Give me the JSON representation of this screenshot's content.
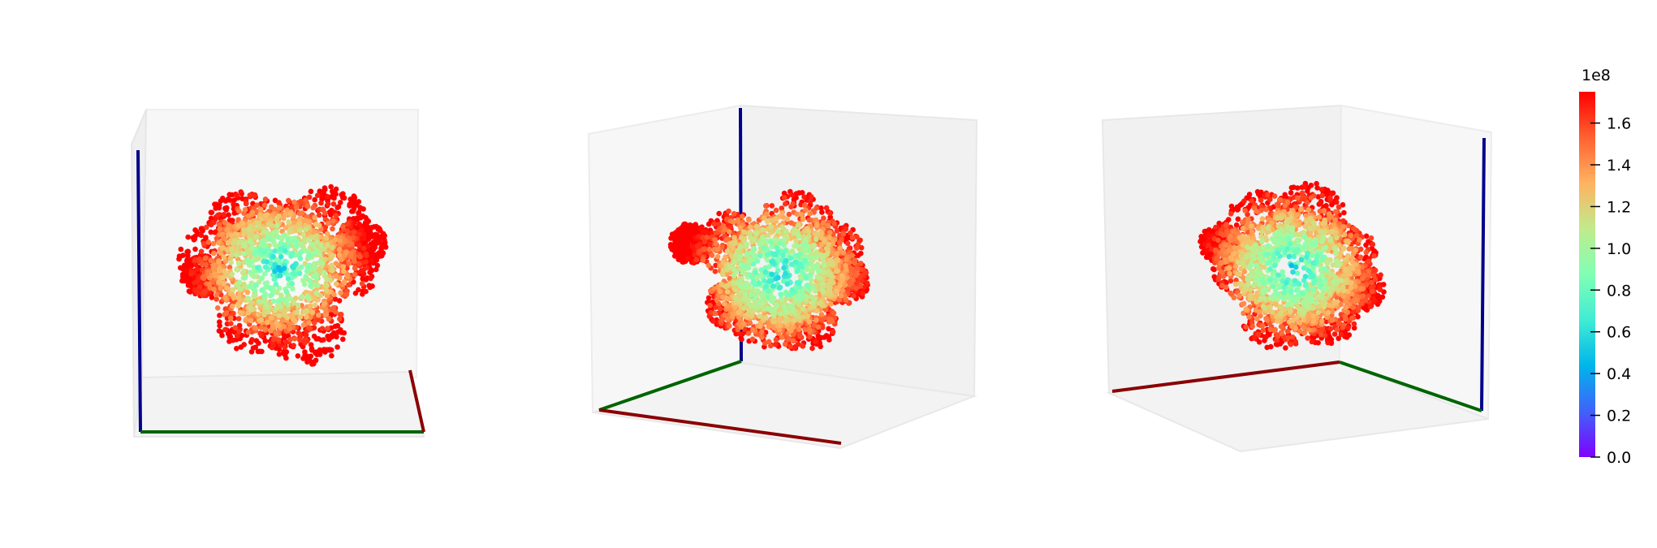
{
  "chart_data": {
    "type": "scatter",
    "subtype": "3d-scatter-multiview",
    "title": "",
    "views": [
      {
        "name": "view-1",
        "axes_shown": [
          "z (blue)",
          "y (green)",
          "x (red)"
        ]
      },
      {
        "name": "view-2",
        "axes_shown": [
          "z (blue)",
          "y (green)",
          "x (red)"
        ]
      },
      {
        "name": "view-3",
        "axes_shown": [
          "z (blue)",
          "y (green)",
          "x (red)"
        ]
      }
    ],
    "point_colors": "rainbow colormap; red outer shell, cyan/blue core",
    "axis_colors": {
      "x": "#8b0000",
      "y": "#006400",
      "z": "#00008b"
    },
    "colorbar": {
      "colormap": "rainbow",
      "min": 0.0,
      "max": 1.75,
      "multiplier": "1e8",
      "ticks": [
        0.0,
        0.2,
        0.4,
        0.6,
        0.8,
        1.0,
        1.2,
        1.4,
        1.6
      ],
      "tick_labels": [
        "0.0",
        "0.2",
        "0.4",
        "0.6",
        "0.8",
        "1.0",
        "1.2",
        "1.4",
        "1.6"
      ]
    }
  }
}
